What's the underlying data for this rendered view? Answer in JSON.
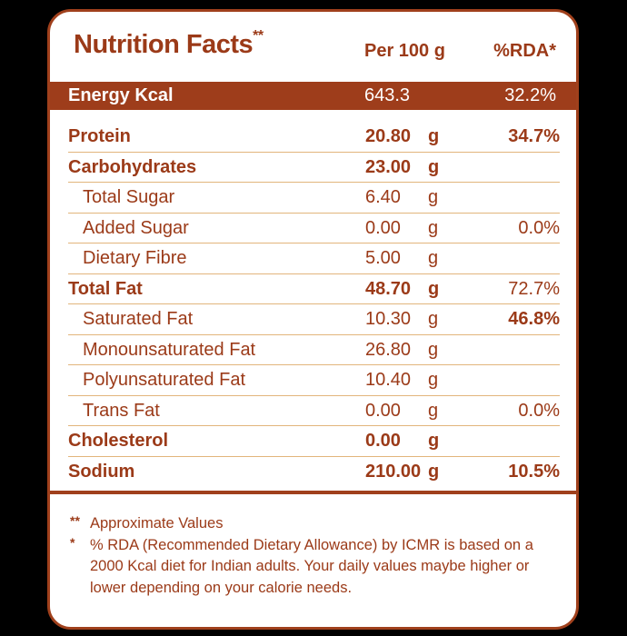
{
  "header": {
    "title": "Nutrition Facts",
    "title_mark": "**",
    "per_label": "Per 100 g",
    "rda_label": "%RDA*"
  },
  "energy": {
    "label": "Energy Kcal",
    "value": "643.3",
    "rda": "32.2%"
  },
  "rows": [
    {
      "label": "Protein",
      "value": "20.80",
      "unit": "g",
      "rda": "34.7%"
    },
    {
      "label": "Carbohydrates",
      "value": "23.00",
      "unit": "g",
      "rda": ""
    },
    {
      "label": "Total Sugar",
      "value": "6.40",
      "unit": "g",
      "rda": ""
    },
    {
      "label": "Added Sugar",
      "value": "0.00",
      "unit": "g",
      "rda": "0.0%"
    },
    {
      "label": "Dietary Fibre",
      "value": "5.00",
      "unit": "g",
      "rda": ""
    },
    {
      "label": "Total Fat",
      "value": "48.70",
      "unit": "g",
      "rda": "72.7%"
    },
    {
      "label": "Saturated Fat",
      "value": "10.30",
      "unit": "g",
      "rda": "46.8%"
    },
    {
      "label": "Monounsaturated Fat",
      "value": "26.80",
      "unit": "g",
      "rda": ""
    },
    {
      "label": "Polyunsaturated Fat",
      "value": "10.40",
      "unit": "g",
      "rda": ""
    },
    {
      "label": "Trans Fat",
      "value": "0.00",
      "unit": "g",
      "rda": "0.0%"
    },
    {
      "label": "Cholesterol",
      "value": "0.00",
      "unit": "g",
      "rda": ""
    },
    {
      "label": "Sodium",
      "value": "210.00",
      "unit": "g",
      "rda": "10.5%"
    }
  ],
  "notes": [
    {
      "mark": "**",
      "text": "Approximate Values"
    },
    {
      "mark": "*",
      "text": "% RDA (Recommended Dietary Allowance) by ICMR is based on a 2000 Kcal diet for Indian adults. Your daily values maybe higher or lower depending on your calorie needs."
    }
  ],
  "colors": {
    "brand": "#9e3d1b",
    "rule": "#e2b57c"
  }
}
